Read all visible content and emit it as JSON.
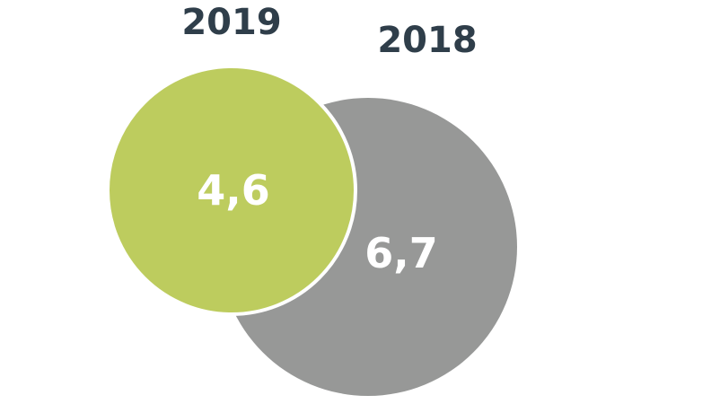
{
  "chart_data": {
    "type": "bubble",
    "title": "",
    "series": [
      {
        "name": "2018",
        "label": "2018",
        "value": 6.7,
        "value_text": "6,7",
        "color": "#979897"
      },
      {
        "name": "2019",
        "label": "2019",
        "value": 4.6,
        "value_text": "4,6",
        "color": "#bdcc5e"
      }
    ],
    "colors": {
      "year_label": "#2f3e4a",
      "value_label": "#ffffff",
      "outline": "#ffffff"
    }
  }
}
